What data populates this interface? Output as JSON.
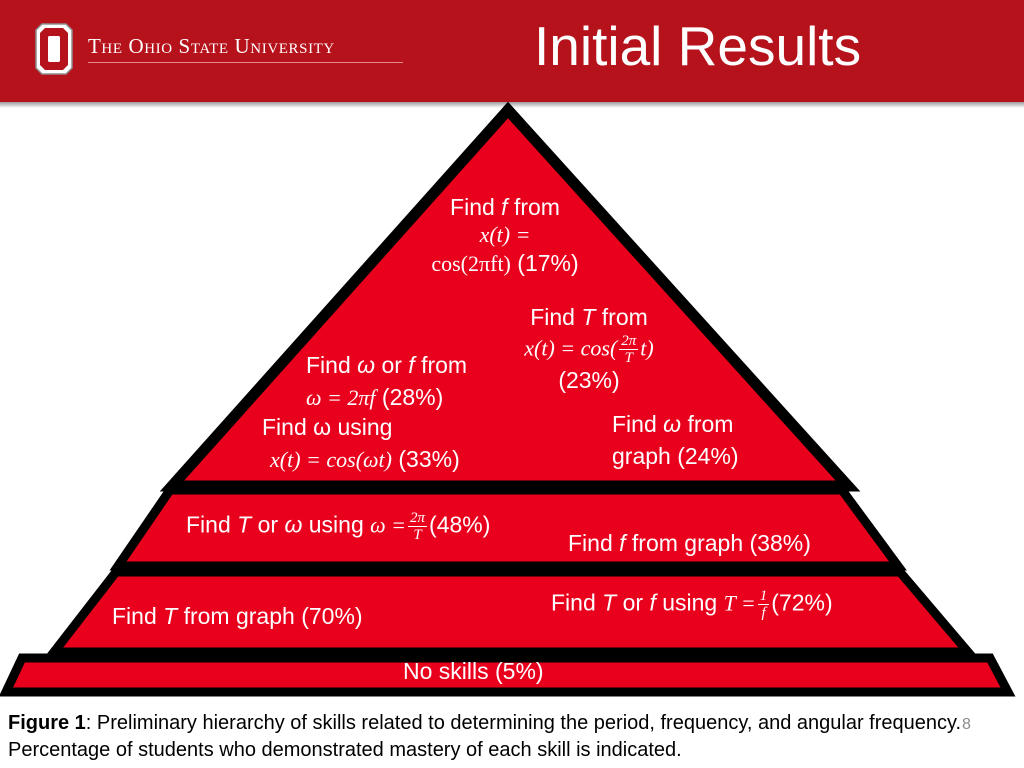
{
  "header": {
    "university_name": "The Ohio State University",
    "title": "Initial Results",
    "logo_icon": "block-o-logo-icon",
    "background_color": "#b5121b"
  },
  "pyramid": {
    "fill_color": "#e8001c",
    "outline_color": "#000000",
    "tiers": [
      {
        "name": "top",
        "skills": [
          {
            "lead": "Find ",
            "var": "f",
            "rest": " from",
            "equation_line1": "x(t) =",
            "equation_line2": "cos(2πft)",
            "percent": "(17%)"
          },
          {
            "lead": "Find ",
            "var": "T",
            "rest": " from",
            "equation_prefix": "x(t) = cos(",
            "frac_num": "2π",
            "frac_den": "T",
            "equation_suffix": "t)",
            "percent": "(23%)"
          },
          {
            "lead": "Find ",
            "var": "ω",
            "mid": " or ",
            "var2": "f",
            "rest": " from",
            "equation": "ω = 2πf",
            "percent": "(28%)"
          },
          {
            "lead": "Find ω using",
            "equation": "x(t) = cos(ωt)",
            "percent": "(33%)"
          },
          {
            "lead": "Find ",
            "var": "ω",
            "rest": " from",
            "line2": "graph (24%)"
          }
        ]
      },
      {
        "name": "second",
        "skills": [
          {
            "lead": "Find ",
            "var": "T",
            "mid": " or ",
            "var2": "ω",
            "rest": " using ",
            "equation_prefix": "ω =",
            "frac_num": "2π",
            "frac_den": "T",
            "percent": "(48%)"
          },
          {
            "lead": "Find ",
            "var": "f",
            "rest": " from graph (38%)"
          }
        ]
      },
      {
        "name": "third",
        "skills": [
          {
            "lead": "Find ",
            "var": "T",
            "rest": " from graph (70%)"
          },
          {
            "lead": "Find ",
            "var": "T",
            "mid": " or ",
            "var2": "f",
            "rest": " using ",
            "equation_prefix": "T =",
            "frac_num": "1",
            "frac_den": "f",
            "percent": "(72%)"
          }
        ]
      },
      {
        "name": "base",
        "skills": [
          {
            "text": "No skills (5%)"
          }
        ]
      }
    ]
  },
  "caption": {
    "label": "Figure 1",
    "text": ": Preliminary hierarchy of skills related to determining the period, frequency, and angular frequency. Percentage of students who demonstrated mastery of each skill is indicated."
  },
  "page_number": "8"
}
